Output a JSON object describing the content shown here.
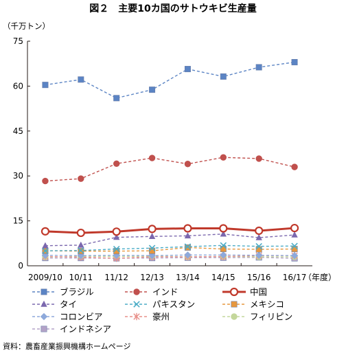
{
  "chart_data": {
    "type": "line",
    "title": "図２　主要10カ国のサトウキビ生産量",
    "ylabel": "（千万トン）",
    "xlabel": "（年度）",
    "ylim": [
      0,
      75
    ],
    "yticks": [
      0,
      15,
      30,
      45,
      60,
      75
    ],
    "categories": [
      "2009/10",
      "10/11",
      "11/12",
      "12/13",
      "13/14",
      "14/15",
      "15/16",
      "16/17"
    ],
    "legend_position": "bottom",
    "grid": false,
    "series": [
      {
        "name": "ブラジル",
        "color": "#5b84c4",
        "marker": "square",
        "dashed": true,
        "values": [
          60.4,
          62.2,
          56.0,
          58.8,
          65.7,
          63.2,
          66.3,
          68.0
        ]
      },
      {
        "name": "インド",
        "color": "#c0504d",
        "marker": "circle",
        "dashed": true,
        "values": [
          28.3,
          29.1,
          34.1,
          36.0,
          34.0,
          36.2,
          35.8,
          33.0
        ]
      },
      {
        "name": "中国",
        "color": "#c0392b",
        "marker": "open-circle",
        "dashed": false,
        "values": [
          11.5,
          11.0,
          11.4,
          12.3,
          12.5,
          12.5,
          11.7,
          12.6
        ]
      },
      {
        "name": "タイ",
        "color": "#7b68ae",
        "marker": "triangle",
        "dashed": true,
        "values": [
          6.7,
          6.9,
          9.5,
          9.8,
          10.0,
          10.6,
          9.4,
          10.3
        ]
      },
      {
        "name": "パキスタン",
        "color": "#4bacc6",
        "marker": "x",
        "dashed": true,
        "values": [
          5.0,
          5.1,
          5.6,
          5.9,
          6.4,
          6.8,
          6.5,
          6.6
        ]
      },
      {
        "name": "メキシコ",
        "color": "#e6973e",
        "marker": "square",
        "dashed": true,
        "values": [
          5.0,
          4.9,
          4.9,
          5.0,
          6.1,
          5.6,
          5.5,
          5.6
        ]
      },
      {
        "name": "コロンビア",
        "color": "#8ea9db",
        "marker": "diamond",
        "dashed": true,
        "values": [
          3.5,
          3.4,
          3.5,
          3.4,
          3.6,
          3.6,
          3.5,
          3.4
        ]
      },
      {
        "name": "豪州",
        "color": "#e8908a",
        "marker": "star",
        "dashed": true,
        "values": [
          3.1,
          2.9,
          2.5,
          3.0,
          3.0,
          3.1,
          3.4,
          3.4
        ]
      },
      {
        "name": "フィリピン",
        "color": "#c4d79b",
        "marker": "circle",
        "dashed": true,
        "values": [
          2.9,
          3.2,
          3.1,
          3.2,
          3.0,
          3.1,
          3.0,
          3.0
        ]
      },
      {
        "name": "インドネシア",
        "color": "#b3a2c7",
        "marker": "square",
        "dashed": true,
        "values": [
          2.6,
          2.6,
          2.5,
          2.6,
          2.7,
          2.7,
          2.8,
          2.5
        ]
      }
    ]
  },
  "source": "資料：農畜産業振興機構ホームページ"
}
